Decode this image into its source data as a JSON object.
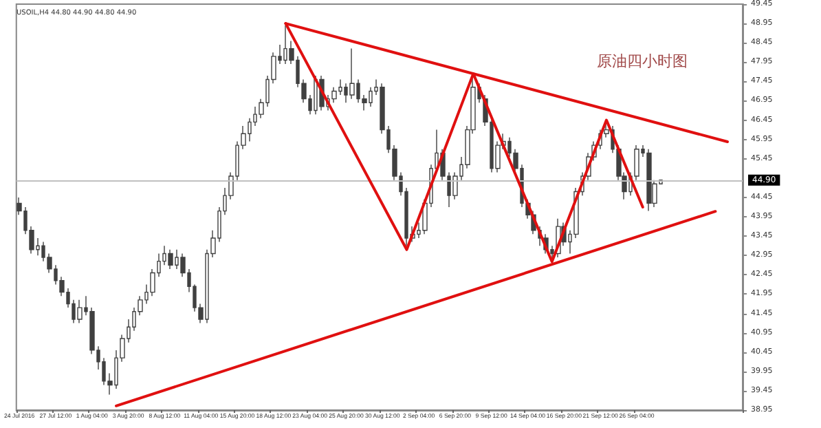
{
  "chart_data": {
    "type": "candlestick",
    "title": "原油四小时图",
    "annotations": [
      "USOIL,H4 44.80 44.90 44.80 44.90"
    ],
    "categories": [
      "24 Jul 2016",
      null,
      null,
      null,
      null,
      null,
      "27 Jul 12:00",
      null,
      null,
      null,
      null,
      null,
      "1 Aug 04:00",
      null,
      null,
      null,
      null,
      null,
      "3 Aug 20:00",
      null,
      null,
      null,
      null,
      null,
      "8 Aug 12:00",
      null,
      null,
      null,
      null,
      null,
      "11 Aug 04:00",
      null,
      null,
      null,
      null,
      null,
      "15 Aug 20:00",
      null,
      null,
      null,
      null,
      null,
      "18 Aug 12:00",
      null,
      null,
      null,
      null,
      null,
      "23 Aug 04:00",
      null,
      null,
      null,
      null,
      null,
      "25 Aug 20:00",
      null,
      null,
      null,
      null,
      null,
      "30 Aug 12:00",
      null,
      null,
      null,
      null,
      null,
      "2 Sep 04:00",
      null,
      null,
      null,
      null,
      null,
      "6 Sep 20:00",
      null,
      null,
      null,
      null,
      null,
      "9 Sep 12:00",
      null,
      null,
      null,
      null,
      null,
      "14 Sep 04:00",
      null,
      null,
      null,
      null,
      null,
      "16 Sep 20:00",
      null,
      null,
      null,
      null,
      null,
      "21 Sep 12:00",
      null,
      null,
      null,
      null,
      null,
      "26 Sep 04:00",
      null,
      null,
      null,
      null,
      null,
      null,
      null,
      null,
      null,
      null,
      null,
      null,
      null,
      null,
      null,
      null,
      null
    ],
    "color": "#404040",
    "ohlc": [
      [
        44.3,
        44.45,
        44.0,
        44.1
      ],
      [
        44.1,
        44.2,
        43.5,
        43.6
      ],
      [
        43.6,
        43.7,
        43.0,
        43.1
      ],
      [
        43.1,
        43.4,
        42.95,
        43.2
      ],
      [
        43.2,
        43.3,
        42.8,
        42.9
      ],
      [
        42.9,
        43.0,
        42.5,
        42.6
      ],
      [
        42.6,
        42.7,
        42.2,
        42.3
      ],
      [
        42.3,
        42.4,
        41.9,
        42.0
      ],
      [
        42.0,
        42.1,
        41.6,
        41.7
      ],
      [
        41.7,
        41.8,
        41.2,
        41.3
      ],
      [
        41.3,
        41.8,
        41.2,
        41.6
      ],
      [
        41.6,
        41.9,
        41.4,
        41.5
      ],
      [
        41.5,
        41.6,
        40.4,
        40.5
      ],
      [
        40.5,
        40.6,
        40.0,
        40.2
      ],
      [
        40.2,
        40.3,
        39.6,
        39.7
      ],
      [
        39.7,
        39.9,
        39.35,
        39.6
      ],
      [
        39.6,
        40.5,
        39.5,
        40.3
      ],
      [
        40.3,
        40.9,
        40.2,
        40.8
      ],
      [
        40.8,
        41.3,
        40.7,
        41.1
      ],
      [
        41.1,
        41.6,
        41.0,
        41.5
      ],
      [
        41.5,
        41.9,
        41.4,
        41.8
      ],
      [
        41.8,
        42.2,
        41.7,
        42.0
      ],
      [
        42.0,
        42.6,
        41.9,
        42.5
      ],
      [
        42.5,
        43.0,
        42.4,
        42.8
      ],
      [
        42.8,
        43.2,
        42.7,
        43.0
      ],
      [
        43.0,
        43.1,
        42.6,
        42.7
      ],
      [
        42.7,
        43.1,
        42.6,
        42.9
      ],
      [
        42.9,
        43.0,
        42.4,
        42.5
      ],
      [
        42.5,
        42.6,
        42.0,
        42.15
      ],
      [
        42.15,
        42.2,
        41.5,
        41.6
      ],
      [
        41.6,
        41.7,
        41.2,
        41.3
      ],
      [
        41.3,
        43.1,
        41.2,
        43.0
      ],
      [
        43.0,
        43.6,
        42.9,
        43.4
      ],
      [
        43.4,
        44.2,
        43.3,
        44.1
      ],
      [
        44.1,
        44.7,
        44.0,
        44.5
      ],
      [
        44.5,
        45.1,
        44.4,
        45.0
      ],
      [
        45.0,
        45.9,
        44.9,
        45.8
      ],
      [
        45.8,
        46.3,
        45.7,
        46.1
      ],
      [
        46.1,
        46.5,
        45.9,
        46.4
      ],
      [
        46.4,
        46.8,
        46.3,
        46.6
      ],
      [
        46.6,
        47.0,
        46.5,
        46.9
      ],
      [
        46.9,
        47.6,
        46.8,
        47.5
      ],
      [
        47.5,
        48.2,
        47.4,
        48.1
      ],
      [
        48.1,
        48.4,
        47.9,
        48.0
      ],
      [
        48.0,
        48.9,
        47.9,
        48.3
      ],
      [
        48.3,
        48.5,
        47.9,
        48.0
      ],
      [
        48.0,
        48.1,
        47.3,
        47.4
      ],
      [
        47.4,
        47.5,
        46.9,
        47.0
      ],
      [
        47.0,
        47.1,
        46.6,
        46.7
      ],
      [
        46.7,
        47.6,
        46.6,
        47.5
      ],
      [
        47.5,
        47.6,
        46.7,
        46.8
      ],
      [
        46.8,
        47.1,
        46.7,
        47.0
      ],
      [
        47.0,
        47.3,
        46.9,
        47.2
      ],
      [
        47.2,
        47.5,
        47.1,
        47.3
      ],
      [
        47.3,
        47.4,
        46.9,
        47.1
      ],
      [
        47.1,
        48.3,
        47.0,
        47.4
      ],
      [
        47.4,
        47.5,
        46.9,
        47.0
      ],
      [
        47.0,
        47.1,
        46.7,
        46.9
      ],
      [
        46.9,
        47.3,
        46.8,
        47.2
      ],
      [
        47.2,
        47.5,
        47.1,
        47.3
      ],
      [
        47.3,
        47.4,
        46.1,
        46.2
      ],
      [
        46.2,
        46.3,
        45.6,
        45.7
      ],
      [
        45.7,
        45.8,
        44.9,
        45.0
      ],
      [
        45.0,
        45.1,
        44.5,
        44.6
      ],
      [
        44.6,
        44.7,
        43.2,
        43.4
      ],
      [
        43.4,
        43.7,
        43.3,
        43.5
      ],
      [
        43.5,
        43.8,
        43.4,
        43.6
      ],
      [
        43.6,
        44.4,
        43.5,
        44.3
      ],
      [
        44.3,
        45.3,
        44.2,
        45.2
      ],
      [
        45.2,
        46.2,
        45.1,
        45.6
      ],
      [
        45.6,
        45.7,
        44.9,
        45.0
      ],
      [
        45.0,
        45.1,
        44.2,
        44.5
      ],
      [
        44.5,
        45.1,
        44.4,
        45.0
      ],
      [
        45.0,
        45.5,
        44.9,
        45.3
      ],
      [
        45.3,
        46.3,
        45.2,
        46.2
      ],
      [
        46.2,
        47.6,
        46.1,
        47.3
      ],
      [
        47.3,
        47.4,
        46.9,
        47.0
      ],
      [
        47.0,
        47.1,
        46.3,
        46.4
      ],
      [
        46.4,
        46.5,
        45.1,
        45.2
      ],
      [
        45.2,
        45.9,
        45.1,
        45.8
      ],
      [
        45.8,
        46.1,
        45.7,
        45.9
      ],
      [
        45.9,
        46.0,
        45.5,
        45.6
      ],
      [
        45.6,
        45.7,
        45.1,
        45.2
      ],
      [
        45.2,
        45.3,
        44.2,
        44.3
      ],
      [
        44.3,
        44.4,
        43.9,
        44.0
      ],
      [
        44.0,
        44.1,
        43.5,
        43.6
      ],
      [
        43.6,
        43.7,
        43.2,
        43.4
      ],
      [
        43.4,
        43.5,
        43.0,
        43.1
      ],
      [
        43.1,
        43.2,
        42.8,
        43.0
      ],
      [
        43.0,
        43.9,
        42.9,
        43.7
      ],
      [
        43.7,
        43.8,
        43.2,
        43.3
      ],
      [
        43.3,
        43.6,
        43.0,
        43.5
      ],
      [
        43.5,
        44.7,
        43.4,
        44.6
      ],
      [
        44.6,
        45.1,
        44.5,
        45.0
      ],
      [
        45.0,
        45.6,
        44.9,
        45.5
      ],
      [
        45.5,
        45.9,
        45.4,
        45.8
      ],
      [
        45.8,
        46.2,
        45.7,
        46.1
      ],
      [
        46.1,
        46.4,
        46.0,
        46.2
      ],
      [
        46.2,
        46.3,
        45.6,
        45.7
      ],
      [
        45.7,
        45.8,
        44.9,
        45.0
      ],
      [
        45.0,
        45.1,
        44.4,
        44.6
      ],
      [
        44.6,
        45.1,
        44.5,
        45.0
      ],
      [
        45.0,
        45.8,
        44.9,
        45.7
      ],
      [
        45.7,
        45.8,
        45.5,
        45.6
      ],
      [
        45.6,
        45.7,
        44.1,
        44.3
      ],
      [
        44.3,
        44.9,
        44.2,
        44.8
      ],
      [
        44.8,
        44.9,
        44.8,
        44.9
      ],
      null,
      null,
      null,
      null,
      null,
      null,
      null,
      null,
      null,
      null,
      null,
      null,
      null
    ],
    "series": [
      {
        "type": "line",
        "color": "#e01010",
        "values": [
          null,
          null,
          null,
          null,
          null,
          null,
          null,
          null,
          null,
          null,
          null,
          null,
          null,
          null,
          null,
          null,
          null,
          null,
          null,
          null,
          null,
          null,
          null,
          null,
          null,
          null,
          null,
          null,
          null,
          null,
          null,
          null,
          null,
          null,
          null,
          null,
          null,
          null,
          null,
          null,
          null,
          null,
          null,
          null,
          48.95,
          null,
          null,
          null,
          null,
          null,
          null,
          null,
          null,
          null,
          null,
          null,
          null,
          null,
          null,
          null,
          null,
          null,
          null,
          null,
          null,
          null,
          null,
          null,
          null,
          null,
          null,
          null,
          null,
          null,
          null,
          null,
          null,
          null,
          null,
          null,
          null,
          null,
          null,
          null,
          null,
          null,
          null,
          null,
          null,
          null,
          null,
          null,
          null,
          null,
          null,
          null,
          null,
          null,
          null,
          null,
          null,
          null,
          null,
          null,
          null,
          null,
          null,
          null,
          null,
          null,
          null,
          null,
          null,
          null,
          null,
          null,
          null,
          45.89,
          null,
          null
        ]
      },
      {
        "type": "line",
        "color": "#e01010",
        "values": [
          null,
          null,
          null,
          null,
          null,
          null,
          null,
          null,
          null,
          null,
          null,
          null,
          null,
          null,
          null,
          null,
          39.06,
          null,
          null,
          null,
          null,
          null,
          null,
          null,
          null,
          null,
          null,
          null,
          null,
          null,
          null,
          null,
          null,
          null,
          null,
          null,
          null,
          null,
          null,
          null,
          null,
          null,
          null,
          null,
          null,
          null,
          null,
          null,
          null,
          null,
          null,
          null,
          null,
          null,
          null,
          null,
          null,
          null,
          null,
          null,
          null,
          null,
          null,
          null,
          null,
          null,
          null,
          null,
          null,
          null,
          null,
          null,
          null,
          null,
          null,
          null,
          null,
          null,
          null,
          null,
          null,
          null,
          null,
          null,
          null,
          null,
          null,
          null,
          null,
          null,
          null,
          null,
          null,
          null,
          null,
          null,
          null,
          null,
          null,
          null,
          null,
          null,
          null,
          null,
          null,
          null,
          null,
          null,
          null,
          null,
          null,
          null,
          null,
          null,
          null,
          44.09,
          null,
          null,
          null,
          null
        ]
      },
      {
        "type": "line",
        "color": "#e01010",
        "values": [
          null,
          null,
          null,
          null,
          null,
          null,
          null,
          null,
          null,
          null,
          null,
          null,
          null,
          null,
          null,
          null,
          null,
          null,
          null,
          null,
          null,
          null,
          null,
          null,
          null,
          null,
          null,
          null,
          null,
          null,
          null,
          null,
          null,
          null,
          null,
          null,
          null,
          null,
          null,
          null,
          null,
          null,
          null,
          null,
          48.95,
          null,
          null,
          null,
          null,
          null,
          null,
          null,
          null,
          null,
          null,
          null,
          null,
          null,
          null,
          null,
          null,
          null,
          null,
          null,
          43.1,
          null,
          null,
          null,
          null,
          null,
          null,
          null,
          null,
          null,
          null,
          47.65,
          null,
          null,
          null,
          null,
          null,
          null,
          null,
          null,
          null,
          null,
          null,
          null,
          42.79,
          null,
          null,
          null,
          null,
          null,
          null,
          null,
          null,
          46.45,
          null,
          null,
          null,
          null,
          null,
          44.2,
          null,
          null,
          null,
          null,
          null,
          null,
          null,
          null,
          null,
          null,
          null,
          null,
          null,
          null,
          null,
          null
        ]
      }
    ],
    "ylim": [
      38.95,
      49.45
    ],
    "yticks": [
      38.95,
      39.45,
      39.95,
      40.45,
      40.95,
      41.45,
      41.95,
      42.45,
      42.95,
      43.45,
      43.95,
      44.45,
      45.45,
      45.95,
      46.45,
      46.95,
      47.45,
      47.95,
      48.45,
      48.95,
      49.45
    ],
    "ref_lines": [
      {
        "axis": "y",
        "value": 44.9,
        "label": "44.90",
        "color": "#c0c0c0"
      }
    ],
    "grid": false,
    "marker": "none",
    "line_style": "solid"
  }
}
